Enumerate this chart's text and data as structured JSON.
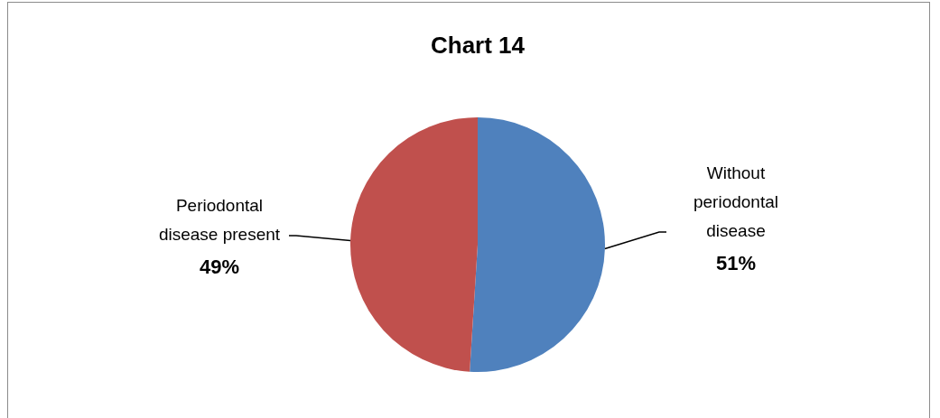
{
  "chart_data": {
    "type": "pie",
    "title": "Chart 14",
    "categories": [
      "Without periodontal disease",
      "Periodontal disease present"
    ],
    "values": [
      51,
      49
    ],
    "colors": [
      "#4f81bd",
      "#c0504d"
    ],
    "value_labels": [
      "51%",
      "49%"
    ],
    "legend": false
  }
}
